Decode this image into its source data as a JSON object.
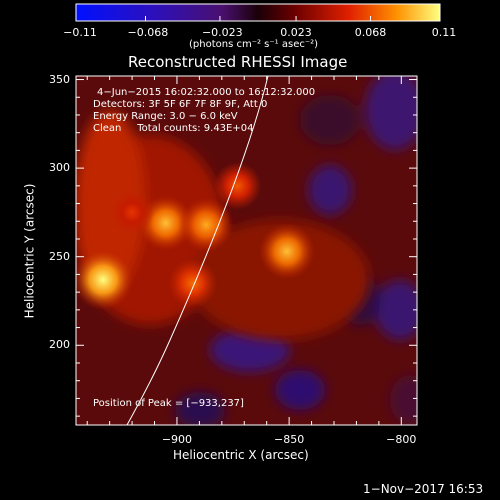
{
  "chart_data": {
    "type": "heatmap",
    "title": "Reconstructed RHESSI Image",
    "xlabel": "Heliocentric X (arcsec)",
    "ylabel": "Heliocentric Y (arcsec)",
    "xlim": [
      -945,
      -793
    ],
    "ylim": [
      155,
      352
    ],
    "x_ticks": [
      -900,
      -850,
      -800
    ],
    "x_tick_labels": [
      "−900",
      "−850",
      "−800"
    ],
    "y_ticks": [
      200,
      250,
      300,
      350
    ],
    "y_tick_labels": [
      "200",
      "250",
      "300",
      "350"
    ],
    "colorbar": {
      "range": [
        -0.11,
        0.11
      ],
      "ticks": [
        -0.11,
        -0.068,
        -0.023,
        0.023,
        0.068,
        0.11
      ],
      "tick_labels": [
        "−0.11",
        "−0.068",
        "−0.023",
        "0.023",
        "0.068",
        "0.11"
      ],
      "unit_label": "(photons cm⁻² s⁻¹ asec⁻²)"
    },
    "annotations": [
      "4−Jun−2015 16:02:32.000 to 16:12:32.000",
      "Detectors: 3F 5F 6F 7F 8F 9F, Att 0",
      "Energy Range: 3.0 − 6.0 keV",
      "Clean     Total counts: 9.43E+04"
    ],
    "peak_label": "Position of Peak = [−933,237]",
    "peak": [
      -933,
      237
    ],
    "sources": [
      {
        "x": -933,
        "y": 237,
        "value": 0.11
      },
      {
        "x": -905,
        "y": 269,
        "value": 0.095
      },
      {
        "x": -887,
        "y": 268,
        "value": 0.09
      },
      {
        "x": -851,
        "y": 253,
        "value": 0.095
      },
      {
        "x": -873,
        "y": 290,
        "value": 0.07
      },
      {
        "x": -893,
        "y": 235,
        "value": 0.075
      },
      {
        "x": -920,
        "y": 275,
        "value": 0.06
      }
    ],
    "grid": false,
    "legend": "none",
    "colors": {
      "background": "#000000",
      "text": "#ffffff"
    }
  },
  "timestamp": "1−Nov−2017 16:53"
}
